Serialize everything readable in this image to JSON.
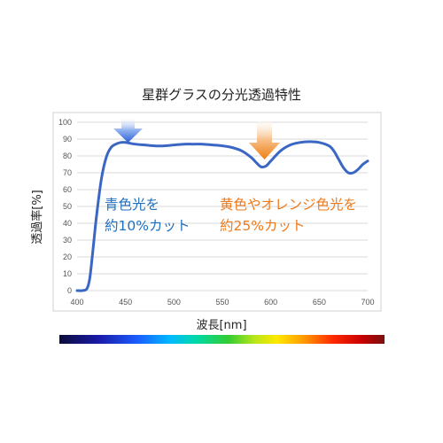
{
  "chart_data": {
    "type": "line",
    "title": "星群グラスの分光透過特性",
    "xlabel": "波長[nm]",
    "ylabel": "透過率[%]",
    "xlim": [
      400,
      700
    ],
    "ylim": [
      0,
      100
    ],
    "xticks": [
      400,
      450,
      500,
      550,
      600,
      650,
      700
    ],
    "yticks": [
      0,
      10,
      20,
      30,
      40,
      50,
      60,
      70,
      80,
      90,
      100
    ],
    "grid": true,
    "legend": "none",
    "colors": {
      "line": "#3a66c4",
      "blue_arrow": "#3d6fe0",
      "orange_arrow": "#f08a1e",
      "blue_text": "#1f6fbf",
      "orange_text": "#ee7a1c"
    },
    "series": [
      {
        "x": [
          400,
          405,
          410,
          413,
          416,
          420,
          425,
          430,
          435,
          440,
          445,
          450,
          460,
          470,
          480,
          490,
          500,
          510,
          520,
          530,
          540,
          550,
          560,
          570,
          580,
          585,
          590,
          595,
          600,
          610,
          620,
          630,
          640,
          650,
          660,
          665,
          670,
          675,
          680,
          685,
          690,
          695,
          700
        ],
        "y": [
          0,
          0,
          1,
          7,
          22,
          44,
          66,
          79,
          85,
          87,
          88,
          88,
          87,
          86.5,
          86,
          86,
          86.5,
          87,
          87,
          87,
          86.5,
          86,
          85,
          83,
          79,
          76,
          73.5,
          74,
          77,
          83,
          86.5,
          88,
          88.5,
          88,
          86,
          83,
          78,
          73,
          70,
          70,
          72,
          75,
          77
        ]
      }
    ],
    "annotations": [
      {
        "lines": [
          "青色光を",
          "約10%カット"
        ],
        "color": "blue"
      },
      {
        "lines": [
          "黄色やオレンジ色光を",
          "約25%カット"
        ],
        "color": "orange"
      }
    ]
  }
}
